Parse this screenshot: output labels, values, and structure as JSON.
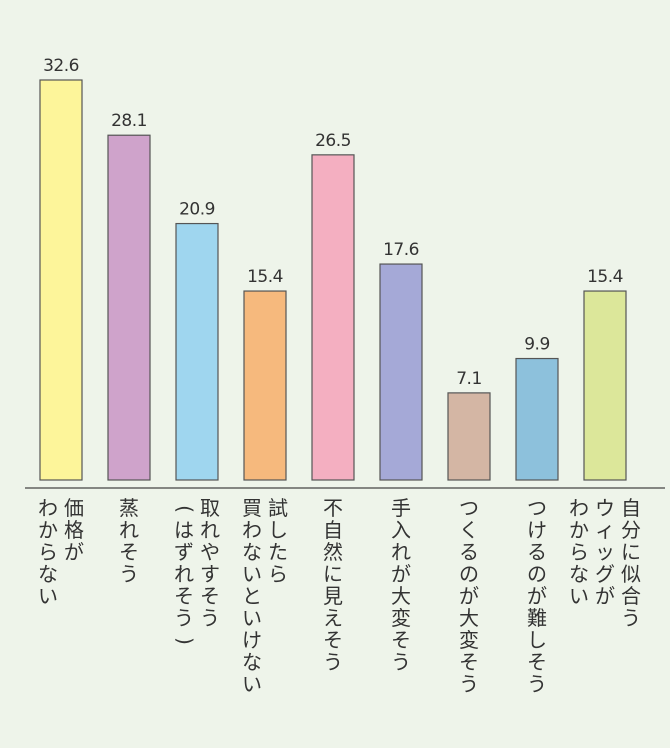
{
  "chart_data": {
    "type": "bar",
    "categories": [
      [
        "価格が",
        "わからない"
      ],
      [
        "蒸れそう"
      ],
      [
        "取れやすそう",
        "(はずれそう)"
      ],
      [
        "試したら",
        "買わないといけない"
      ],
      [
        "不自然に見えそう"
      ],
      [
        "手入れが大変そう"
      ],
      [
        "つくるのが大変そう"
      ],
      [
        "つけるのが難しそう"
      ],
      [
        "自分に似合う",
        "ウィッグが",
        "わからない"
      ]
    ],
    "values": [
      32.6,
      28.1,
      20.9,
      15.4,
      26.5,
      17.6,
      7.1,
      9.9,
      15.4
    ],
    "value_labels": [
      "32.6",
      "28.1",
      "20.9",
      "15.4",
      "26.5",
      "17.6",
      "7.1",
      "9.9",
      "15.4"
    ],
    "colors": [
      "#fdf59a",
      "#cfa3cb",
      "#9fd6ef",
      "#f6b97d",
      "#f4afc1",
      "#a5a9d7",
      "#d4b6a4",
      "#8dc1dc",
      "#dce79a"
    ],
    "ylim": [
      0,
      32.6
    ],
    "title": "",
    "xlabel": "",
    "ylabel": "",
    "grid": false,
    "legend": false
  }
}
